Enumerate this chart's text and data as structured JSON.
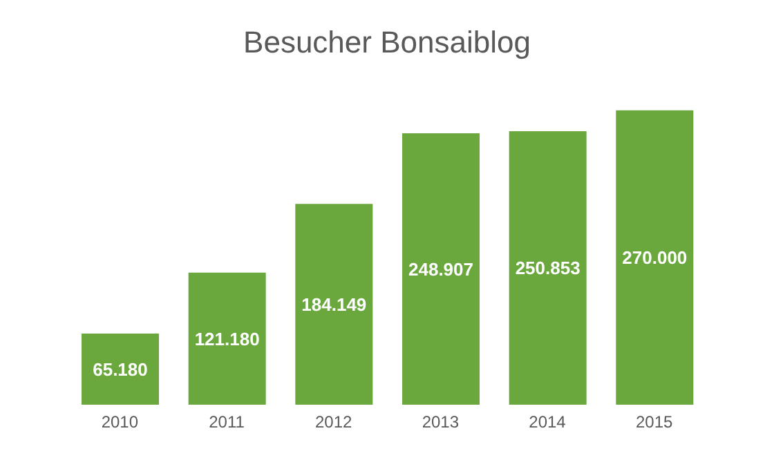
{
  "chart_data": {
    "type": "bar",
    "title": "Besucher Bonsaiblog",
    "categories": [
      "2010",
      "2011",
      "2012",
      "2013",
      "2014",
      "2015"
    ],
    "values": [
      65180,
      121180,
      184149,
      248907,
      250853,
      270000
    ],
    "value_labels": [
      "65.180",
      "121.180",
      "184.149",
      "248.907",
      "250.853",
      "270.000"
    ],
    "color": "#6aa83e",
    "tick_labels": "x",
    "grid": false,
    "legend": false
  }
}
